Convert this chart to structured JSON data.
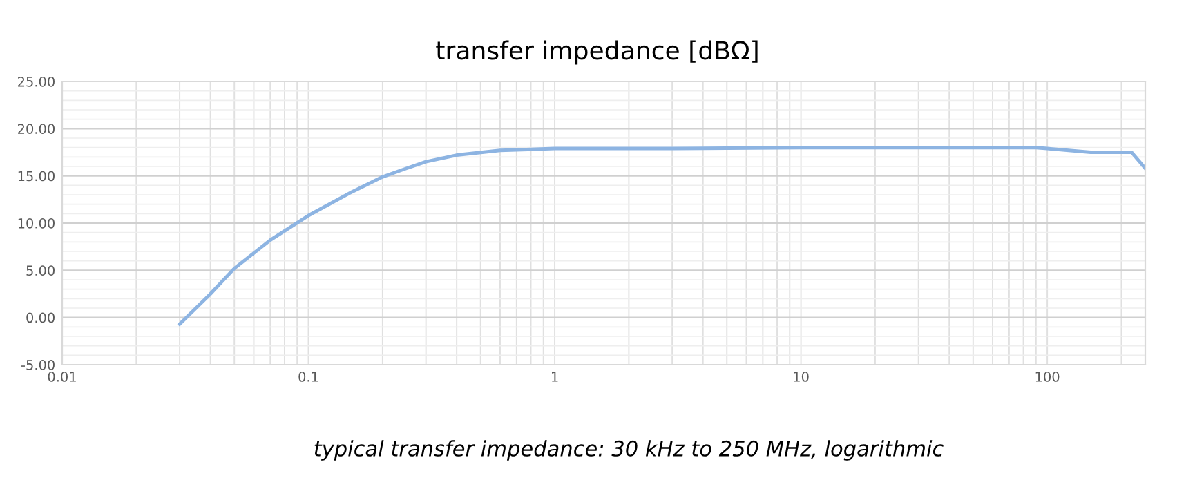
{
  "chart_data": {
    "type": "line",
    "title": "transfer impedance [dBΩ]",
    "annotations": [
      "typical transfer impedance: 30 kHz to 250 MHz, logarithmic"
    ],
    "x": [
      0.03,
      0.04,
      0.05,
      0.07,
      0.1,
      0.15,
      0.2,
      0.25,
      0.3,
      0.4,
      0.6,
      1,
      3,
      10,
      30,
      90,
      100,
      150,
      220,
      250
    ],
    "series": [
      {
        "color": "#8db4e2",
        "values": [
          -0.7,
          2.5,
          5.2,
          8.2,
          10.8,
          13.3,
          14.9,
          15.8,
          16.5,
          17.2,
          17.7,
          17.9,
          17.9,
          18.0,
          18.0,
          18.0,
          17.9,
          17.5,
          17.5,
          15.8
        ]
      }
    ],
    "log": "x",
    "xlim": [
      0.01,
      250
    ],
    "xticks": [
      0.01,
      0.1,
      1,
      10,
      100
    ],
    "ylim": [
      -5,
      25
    ],
    "yticks": [
      {
        "value": -5,
        "label": "-5.00"
      },
      {
        "value": 0,
        "label": "0.00"
      },
      {
        "value": 5,
        "label": "5.00"
      },
      {
        "value": 10,
        "label": "10.00"
      },
      {
        "value": 15,
        "label": "15.00"
      },
      {
        "value": 20,
        "label": "20.00"
      },
      {
        "value": 25,
        "label": "25.00"
      }
    ],
    "grid": true,
    "marker": "none",
    "line_style": "solid"
  }
}
